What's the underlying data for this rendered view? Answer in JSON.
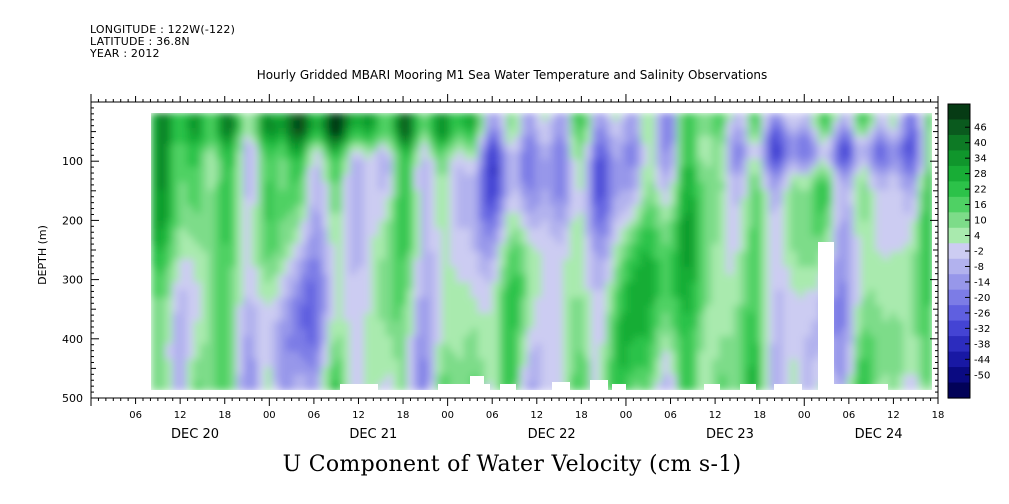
{
  "header": {
    "longitude": "LONGITUDE : 122W(-122)",
    "latitude": "LATITUDE : 36.8N",
    "year": "YEAR : 2012"
  },
  "title": "Hourly Gridded MBARI Mooring M1 Sea Water Temperature and Salinity Observations",
  "xaxis_title": "U Component of Water Velocity (cm s-1)",
  "chart_data": {
    "type": "heatmap",
    "title": "Hourly Gridded MBARI Mooring M1 Sea Water Temperature and Salinity Observations",
    "variable": "U Component of Water Velocity (cm s-1)",
    "ylabel": "DEPTH (m)",
    "ylim": [
      500,
      0
    ],
    "yticks": [
      100,
      200,
      300,
      400,
      500
    ],
    "x_start": "DEC 20 00:00",
    "x_end": "DEC 24 18:00",
    "x_hour_ticks": [
      "06",
      "12",
      "18",
      "00",
      "06",
      "12",
      "18",
      "00",
      "06",
      "12",
      "18",
      "00",
      "06",
      "12",
      "18",
      "00",
      "06",
      "12",
      "18"
    ],
    "day_labels": [
      "DEC 20",
      "DEC 21",
      "DEC 22",
      "DEC 23",
      "DEC 24"
    ],
    "data_start": "DEC 20 11:00",
    "colorbar": {
      "labels": [
        "46",
        "40",
        "34",
        "28",
        "22",
        "16",
        "10",
        "4",
        "-2",
        "-8",
        "-14",
        "-20",
        "-26",
        "-32",
        "-38",
        "-44",
        "-50"
      ],
      "colors": [
        "#063b14",
        "#0a5a1e",
        "#0d7a25",
        "#10962c",
        "#18ad36",
        "#2cc249",
        "#4fd164",
        "#7ddc89",
        "#a9eaae",
        "#ccccf2",
        "#b2b2ee",
        "#9797ea",
        "#7c7ce6",
        "#5f5fe0",
        "#4444d4",
        "#2c2cbe",
        "#1818a4",
        "#0a0a82",
        "#020258"
      ],
      "range": [
        -50,
        46
      ]
    },
    "features": [
      {
        "region": "near-surface ~20-60 m DEC 21 00:00 to DEC 22 00:00",
        "sign": "positive",
        "approx_value": 35
      },
      {
        "region": "~60-200 m DEC 22 06:00 to DEC 23 12:00",
        "sign": "negative",
        "approx_value": -20
      },
      {
        "region": "~80-130 m DEC 23 18:00 to DEC 24 12:00",
        "sign": "negative",
        "approx_value": -25
      },
      {
        "region": "~150-300 m DEC 23",
        "sign": "positive",
        "approx_value": 15
      },
      {
        "region": "~250-480 m DEC 20 18:00 to DEC 21 12:00",
        "sign": "negative",
        "approx_value": -10
      }
    ]
  }
}
